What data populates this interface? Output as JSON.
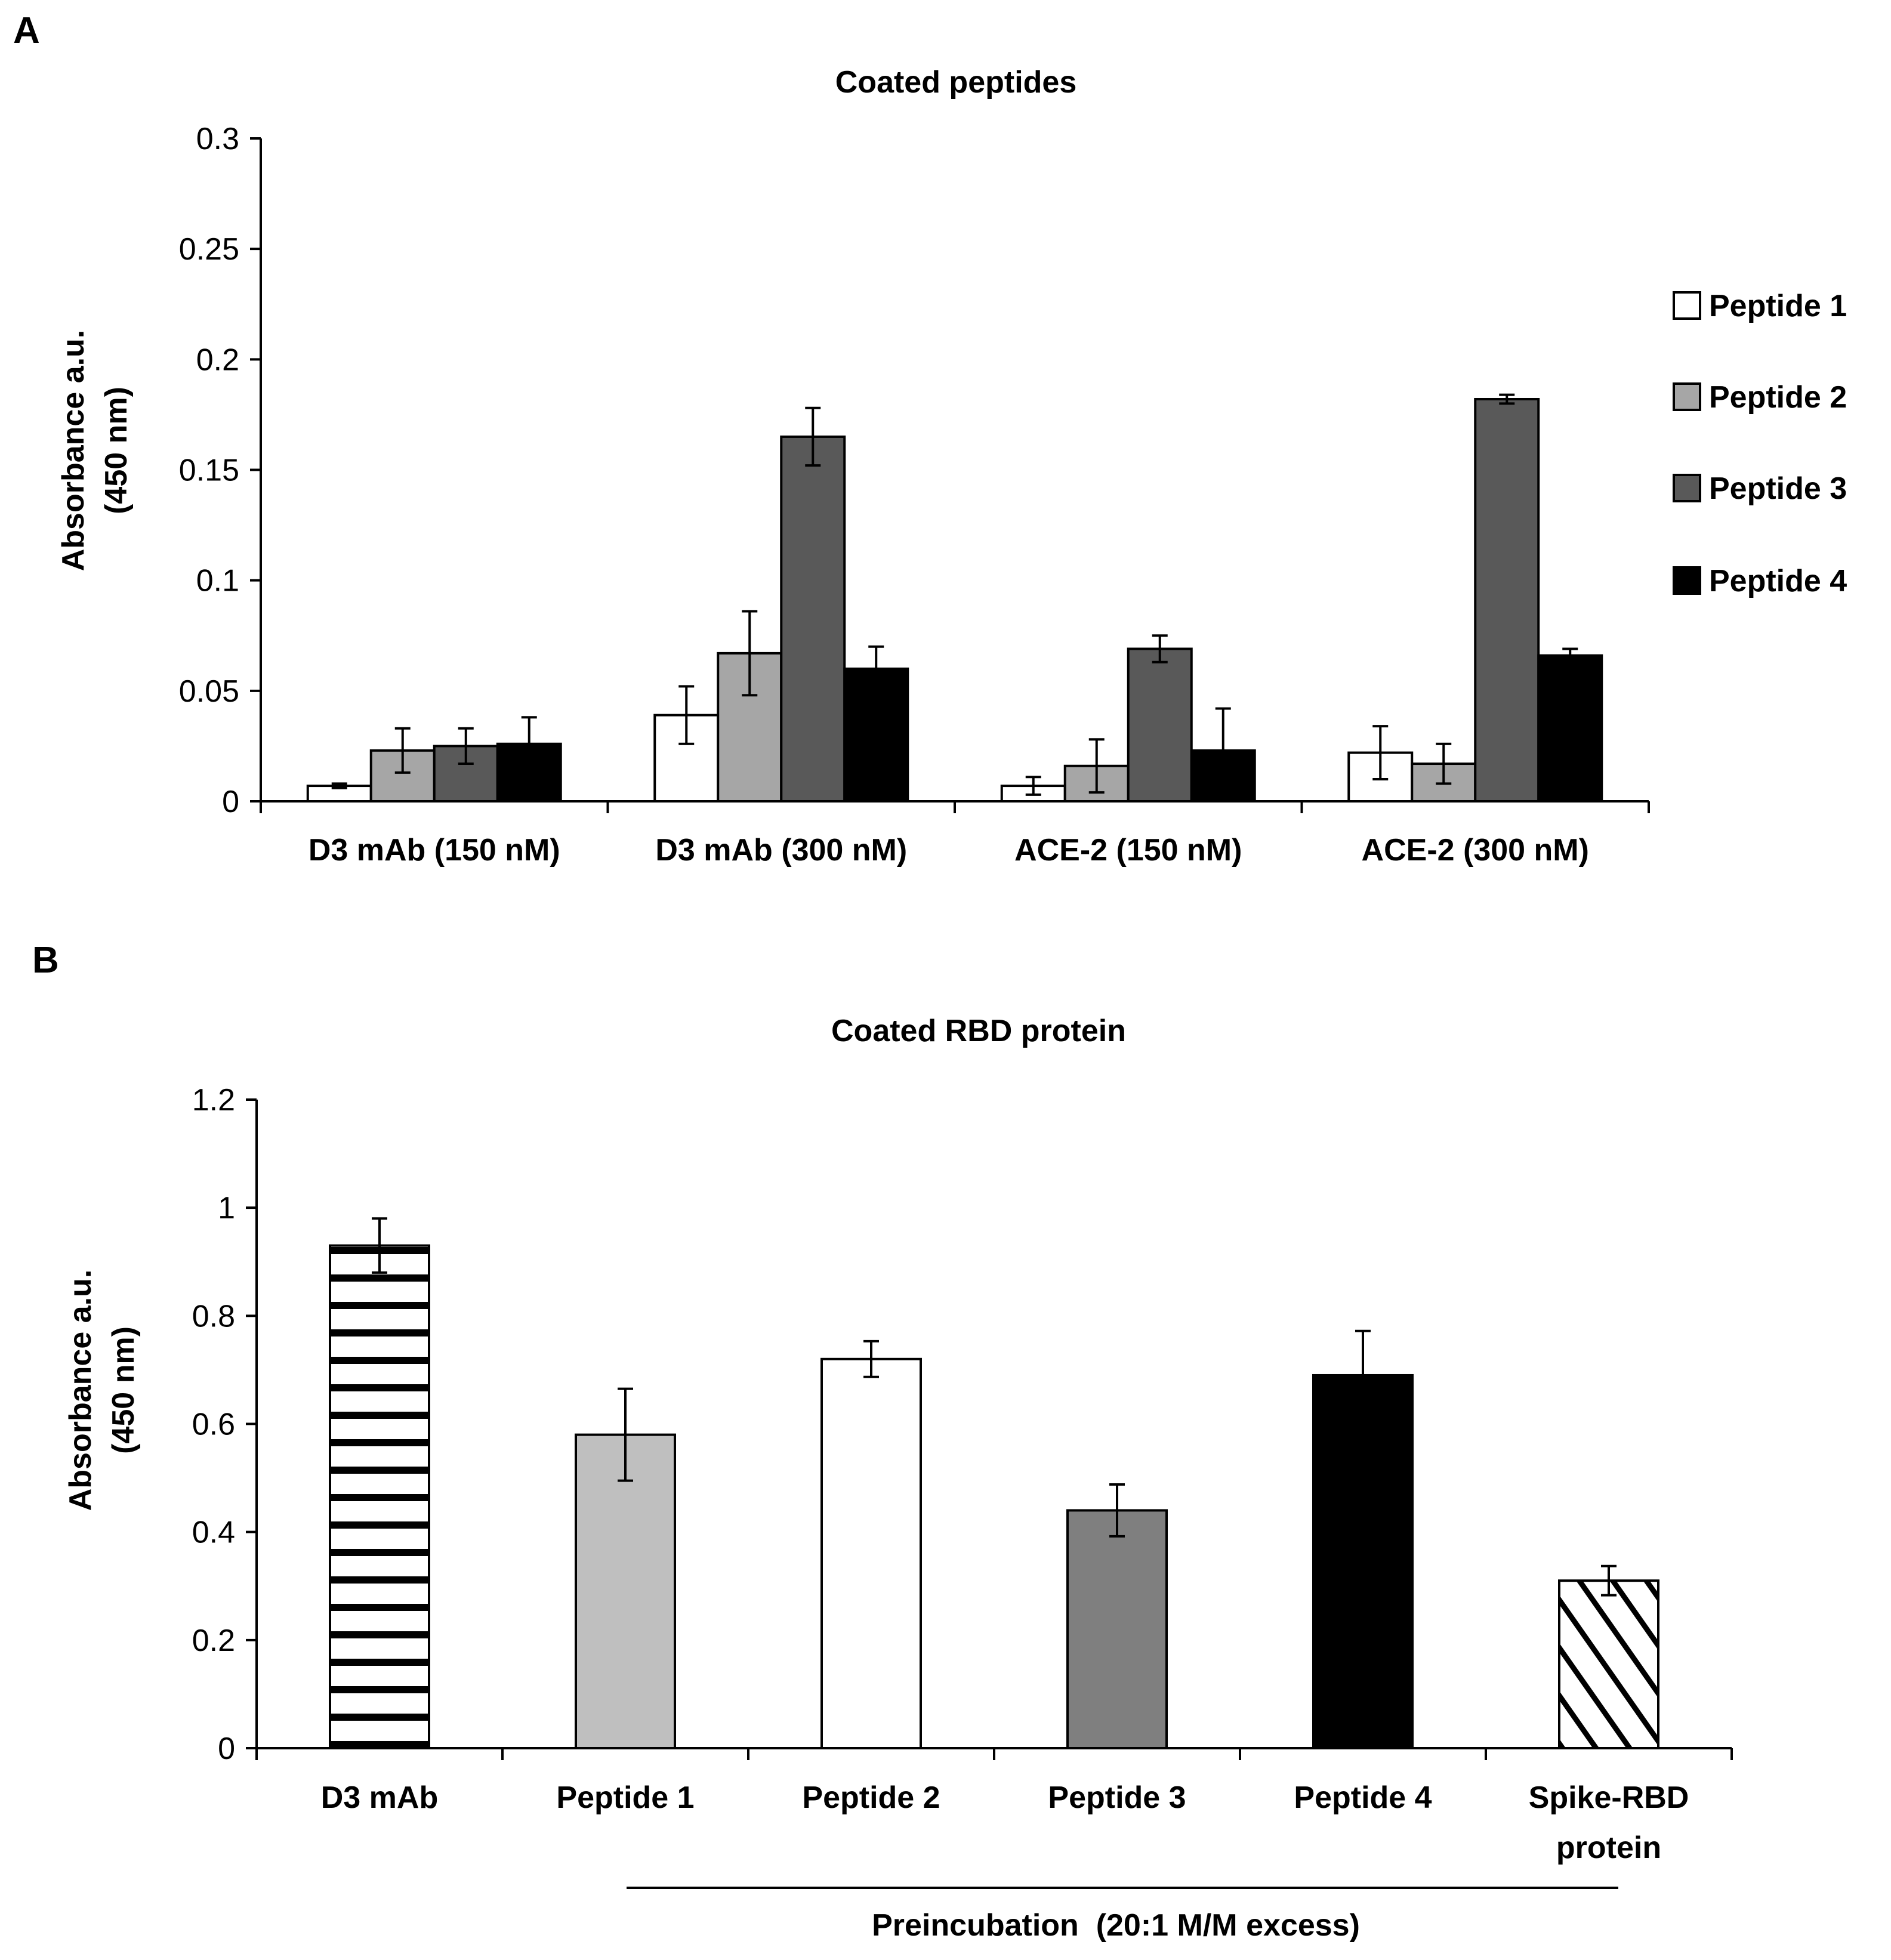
{
  "panels": {
    "a": {
      "letter": "A"
    },
    "b": {
      "letter": "B"
    }
  },
  "chart_data": [
    {
      "type": "bar",
      "title": "Coated peptides",
      "ylabel_line1": "Absorbance a.u.",
      "ylabel_line2": "(450 nm)",
      "xlabel": "",
      "ylim": [
        0,
        0.3
      ],
      "yticks": [
        "0",
        "0.05",
        "0.1",
        "0.15",
        "0.2",
        "0.25",
        "0.3"
      ],
      "grid": false,
      "legend_position": "right",
      "categories": [
        "D3 mAb (150 nM)",
        "D3 mAb (300 nM)",
        "ACE-2 (150 nM)",
        "ACE-2 (300 nM)"
      ],
      "series": [
        {
          "name": "Peptide 1",
          "color": "#ffffff",
          "values": [
            0.007,
            0.039,
            0.007,
            0.022
          ],
          "errors": [
            0.001,
            0.013,
            0.004,
            0.012
          ]
        },
        {
          "name": "Peptide 2",
          "color": "#a6a6a6",
          "values": [
            0.023,
            0.067,
            0.016,
            0.017
          ],
          "errors": [
            0.01,
            0.019,
            0.012,
            0.009
          ]
        },
        {
          "name": "Peptide 3",
          "color": "#595959",
          "values": [
            0.025,
            0.165,
            0.069,
            0.182
          ],
          "errors": [
            0.008,
            0.013,
            0.006,
            0.002
          ]
        },
        {
          "name": "Peptide 4",
          "color": "#000000",
          "values": [
            0.026,
            0.06,
            0.023,
            0.066
          ],
          "errors": [
            0.012,
            0.01,
            0.019,
            0.003
          ]
        }
      ]
    },
    {
      "type": "bar",
      "title": "Coated RBD protein",
      "ylabel_line1": "Absorbance a.u.",
      "ylabel_line2": "(450 nm)",
      "xlabel": "",
      "ylim": [
        0,
        1.2
      ],
      "yticks": [
        "0",
        "0.2",
        "0.4",
        "0.6",
        "0.8",
        "1",
        "1.2"
      ],
      "grid": false,
      "categories": [
        {
          "lines": [
            "D3 mAb"
          ]
        },
        {
          "lines": [
            "Peptide 1"
          ]
        },
        {
          "lines": [
            "Peptide 2"
          ]
        },
        {
          "lines": [
            "Peptide 3"
          ]
        },
        {
          "lines": [
            "Peptide 4"
          ]
        },
        {
          "lines": [
            "Spike-RBD",
            "protein"
          ]
        }
      ],
      "values": [
        0.93,
        0.58,
        0.72,
        0.44,
        0.69,
        0.31
      ],
      "errors": [
        0.05,
        0.085,
        0.033,
        0.048,
        0.082,
        0.027
      ],
      "fills": [
        "horizontal-stripes",
        "#bfbfbf",
        "#ffffff",
        "#7f7f7f",
        "#000000",
        "diagonal-hatch"
      ],
      "bracket_label": "Preincubation  (20:1 M/M excess)"
    }
  ]
}
